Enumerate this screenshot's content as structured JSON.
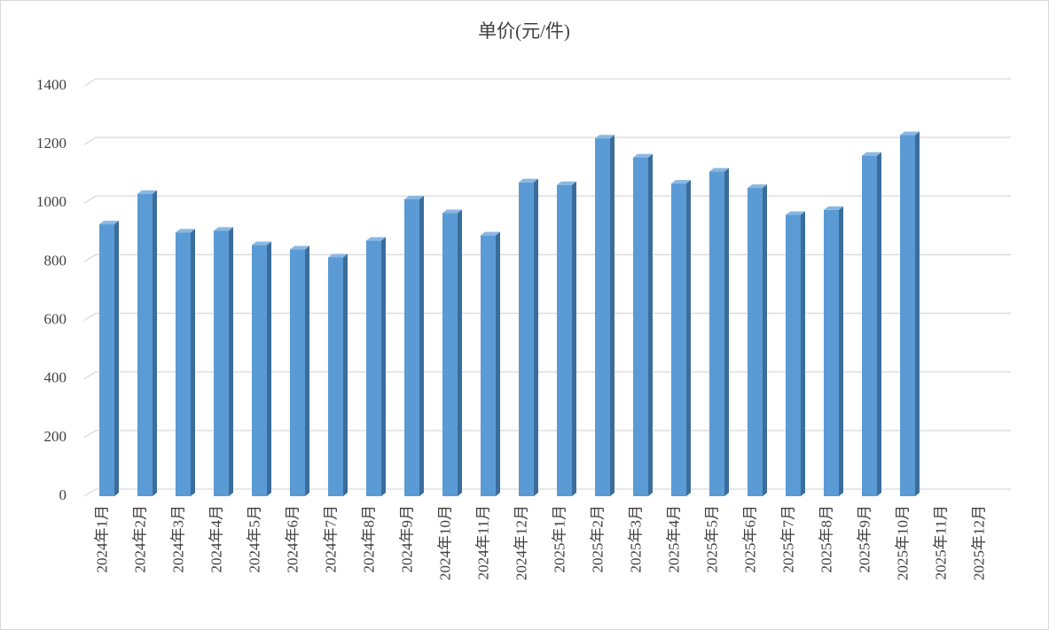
{
  "chart_data": {
    "type": "bar",
    "title": "单价(元/件)",
    "categories": [
      "2024年1月",
      "2024年2月",
      "2024年3月",
      "2024年4月",
      "2024年5月",
      "2024年6月",
      "2024年7月",
      "2024年8月",
      "2024年9月",
      "2024年10月",
      "2024年11月",
      "2024年12月",
      "2025年1月",
      "2025年2月",
      "2025年3月",
      "2025年4月",
      "2025年5月",
      "2025年6月",
      "2025年7月",
      "2025年8月",
      "2025年9月",
      "2025年10月",
      "2025年11月",
      "2025年12月"
    ],
    "values": [
      928,
      1032,
      900,
      906,
      857,
      842,
      815,
      872,
      1013,
      966,
      890,
      1071,
      1062,
      1221,
      1156,
      1067,
      1108,
      1052,
      960,
      977,
      1162,
      1232,
      null,
      null
    ],
    "color": "#5b9bd5",
    "ylim": [
      0,
      1400
    ],
    "yticks": [
      0,
      200,
      400,
      600,
      800,
      1000,
      1200,
      1400
    ],
    "grid": true
  }
}
